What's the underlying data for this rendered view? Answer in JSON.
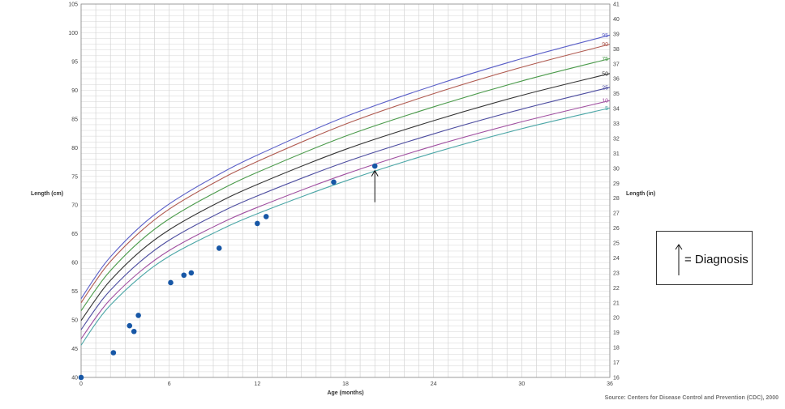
{
  "chart_data": {
    "type": "scatter",
    "xlabel": "Age (months)",
    "ylabel_left": "Length (cm)",
    "ylabel_right": "Length (in)",
    "xlim": [
      0,
      36
    ],
    "ylim": [
      40,
      105
    ],
    "ylim_right": [
      16,
      41
    ],
    "x_ticks": [
      0,
      6,
      12,
      18,
      24,
      30,
      36
    ],
    "y_ticks_left": [
      40,
      45,
      50,
      55,
      60,
      65,
      70,
      75,
      80,
      85,
      90,
      95,
      100,
      105
    ],
    "y_ticks_right": [
      16,
      17,
      18,
      19,
      20,
      21,
      22,
      23,
      24,
      25,
      26,
      27,
      28,
      29,
      30,
      31,
      32,
      33,
      34,
      35,
      36,
      37,
      38,
      39,
      40,
      41
    ],
    "grid": true,
    "percentile_curves": [
      {
        "name": "95",
        "color": "#5a5fc8",
        "points": [
          [
            0,
            53.7
          ],
          [
            1,
            57.6
          ],
          [
            2,
            61.0
          ],
          [
            4,
            66.2
          ],
          [
            6,
            70.2
          ],
          [
            9,
            74.8
          ],
          [
            12,
            78.7
          ],
          [
            18,
            85.4
          ],
          [
            24,
            90.8
          ],
          [
            30,
            95.5
          ],
          [
            36,
            99.6
          ]
        ]
      },
      {
        "name": "90",
        "color": "#b05a50",
        "points": [
          [
            0,
            53.0
          ],
          [
            1,
            56.8
          ],
          [
            2,
            60.2
          ],
          [
            4,
            65.3
          ],
          [
            6,
            69.3
          ],
          [
            9,
            73.8
          ],
          [
            12,
            77.6
          ],
          [
            18,
            84.1
          ],
          [
            24,
            89.4
          ],
          [
            30,
            94.0
          ],
          [
            36,
            98.0
          ]
        ]
      },
      {
        "name": "75",
        "color": "#4a9a4a",
        "points": [
          [
            0,
            51.6
          ],
          [
            1,
            55.3
          ],
          [
            2,
            58.6
          ],
          [
            4,
            63.7
          ],
          [
            6,
            67.6
          ],
          [
            9,
            72.0
          ],
          [
            12,
            75.7
          ],
          [
            18,
            82.0
          ],
          [
            24,
            87.1
          ],
          [
            30,
            91.6
          ],
          [
            36,
            95.5
          ]
        ]
      },
      {
        "name": "50",
        "color": "#333333",
        "points": [
          [
            0,
            49.9
          ],
          [
            1,
            53.6
          ],
          [
            2,
            56.9
          ],
          [
            4,
            61.9
          ],
          [
            6,
            65.7
          ],
          [
            9,
            70.0
          ],
          [
            12,
            73.6
          ],
          [
            18,
            79.7
          ],
          [
            24,
            84.7
          ],
          [
            30,
            89.1
          ],
          [
            36,
            92.9
          ]
        ]
      },
      {
        "name": "25",
        "color": "#4d4da0",
        "points": [
          [
            0,
            48.3
          ],
          [
            1,
            52.0
          ],
          [
            2,
            55.2
          ],
          [
            4,
            60.1
          ],
          [
            6,
            63.9
          ],
          [
            9,
            68.1
          ],
          [
            12,
            71.6
          ],
          [
            18,
            77.5
          ],
          [
            24,
            82.4
          ],
          [
            30,
            86.7
          ],
          [
            36,
            90.5
          ]
        ]
      },
      {
        "name": "10",
        "color": "#a04fa0",
        "points": [
          [
            0,
            46.7
          ],
          [
            1,
            50.4
          ],
          [
            2,
            53.6
          ],
          [
            4,
            58.4
          ],
          [
            6,
            62.1
          ],
          [
            9,
            66.2
          ],
          [
            12,
            69.6
          ],
          [
            18,
            75.4
          ],
          [
            24,
            80.3
          ],
          [
            30,
            84.5
          ],
          [
            36,
            88.2
          ]
        ]
      },
      {
        "name": "5",
        "color": "#4aa6a6",
        "points": [
          [
            0,
            45.6
          ],
          [
            1,
            49.4
          ],
          [
            2,
            52.6
          ],
          [
            4,
            57.4
          ],
          [
            6,
            61.1
          ],
          [
            9,
            65.1
          ],
          [
            12,
            68.5
          ],
          [
            18,
            74.2
          ],
          [
            24,
            79.1
          ],
          [
            30,
            83.3
          ],
          [
            36,
            86.9
          ]
        ]
      }
    ],
    "patient_points": [
      {
        "x": 0.0,
        "y": 40.0
      },
      {
        "x": 2.2,
        "y": 44.3
      },
      {
        "x": 3.3,
        "y": 49.0
      },
      {
        "x": 3.6,
        "y": 48.0
      },
      {
        "x": 3.9,
        "y": 50.8
      },
      {
        "x": 6.1,
        "y": 56.5
      },
      {
        "x": 7.0,
        "y": 57.8
      },
      {
        "x": 7.5,
        "y": 58.2
      },
      {
        "x": 9.4,
        "y": 62.5
      },
      {
        "x": 12.0,
        "y": 66.8
      },
      {
        "x": 12.6,
        "y": 68.0
      },
      {
        "x": 17.2,
        "y": 74.0
      },
      {
        "x": 20.0,
        "y": 76.8
      }
    ],
    "diagnosis_marker": {
      "x": 20.0,
      "y_from": 70.5,
      "y_to": 76.0
    }
  },
  "legend": {
    "diagnosis_label": "= Diagnosis"
  },
  "source_note": "Source: Centers for Disease Control and Prevention (CDC), 2000",
  "colors": {
    "grid": "#d4d4d4",
    "point": "#1757a6",
    "axis": "#888888"
  }
}
